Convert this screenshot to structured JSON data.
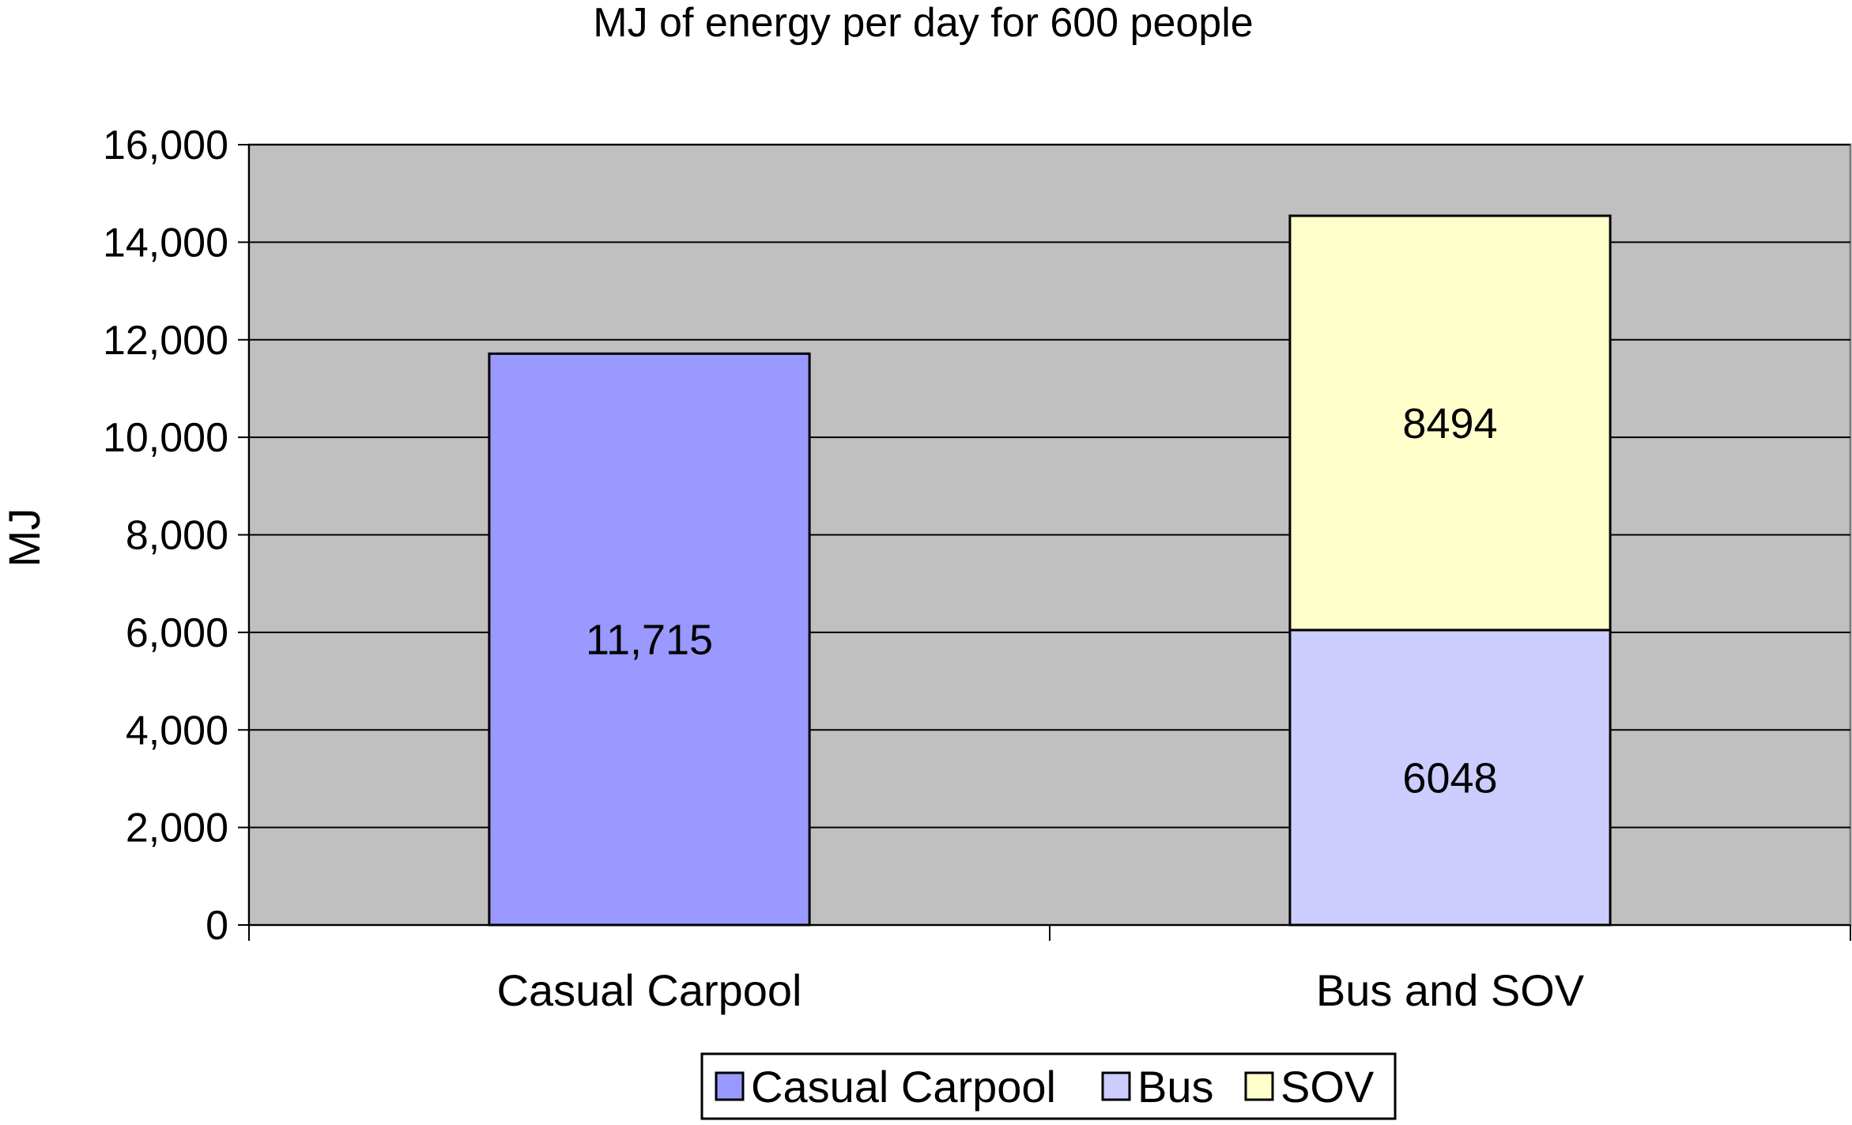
{
  "chart_data": {
    "type": "bar",
    "stacked": true,
    "title": "MJ of energy per day for 600 people",
    "xlabel": "",
    "ylabel": "MJ",
    "ylim": [
      0,
      16000
    ],
    "y_ticks": [
      0,
      2000,
      4000,
      6000,
      8000,
      10000,
      12000,
      14000,
      16000
    ],
    "y_tick_labels": [
      "0",
      "2,000",
      "4,000",
      "6,000",
      "8,000",
      "10,000",
      "12,000",
      "14,000",
      "16,000"
    ],
    "grid": true,
    "legend_position": "bottom",
    "categories": [
      "Casual Carpool",
      "Bus and SOV"
    ],
    "series": [
      {
        "name": "Casual Carpool",
        "color": "#9999ff",
        "values": [
          11715,
          0
        ],
        "labels": [
          "11,715",
          ""
        ]
      },
      {
        "name": "Bus",
        "color": "#ccccff",
        "values": [
          0,
          6048
        ],
        "labels": [
          "",
          "6048"
        ]
      },
      {
        "name": "SOV",
        "color": "#ffffcc",
        "values": [
          0,
          8494
        ],
        "labels": [
          "",
          "8494"
        ]
      }
    ],
    "plot_background": "#c0c0c0"
  }
}
